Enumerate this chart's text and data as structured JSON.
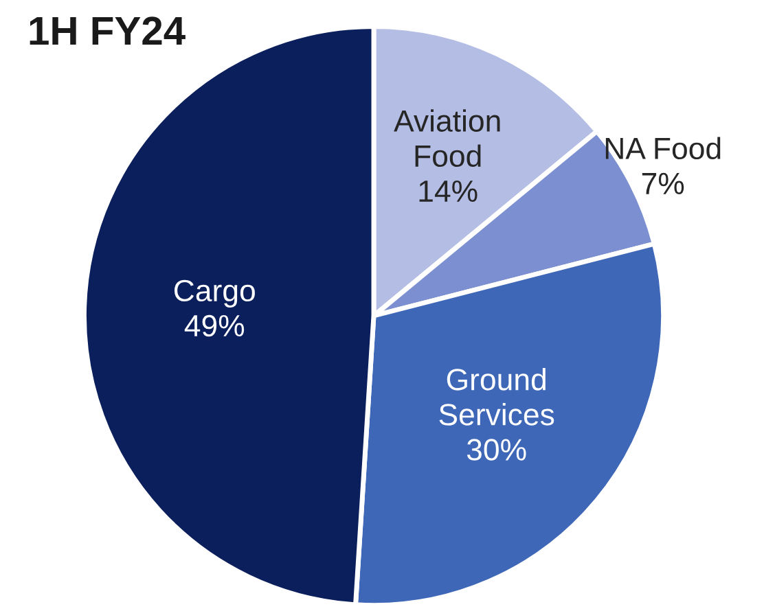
{
  "chart_data": {
    "type": "pie",
    "title": "1H FY24",
    "categories": [
      "Aviation\nFood",
      "NA Food",
      "Ground\nServices",
      "Cargo"
    ],
    "values": [
      14,
      7,
      30,
      49
    ],
    "value_labels": [
      "14%",
      "7%",
      "30%",
      "49%"
    ],
    "colors": [
      "#b4bde3",
      "#7b8fd1",
      "#3f67b8",
      "#0b1f5c"
    ]
  }
}
